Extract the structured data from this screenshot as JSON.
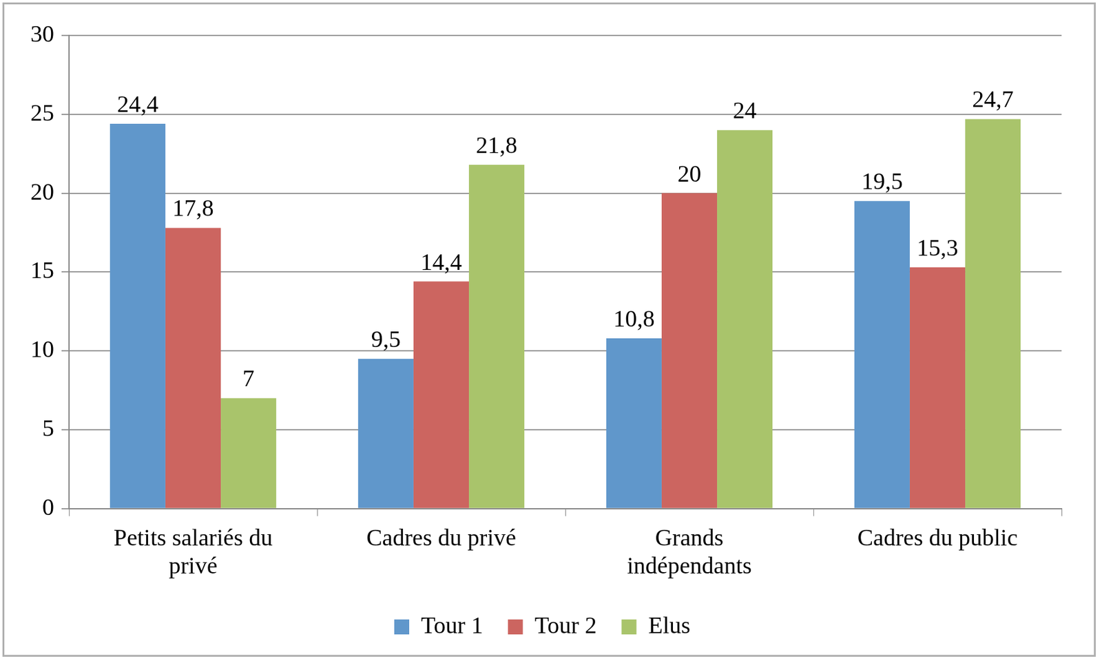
{
  "chart_data": {
    "type": "bar",
    "categories": [
      "Petits salariés du\nprivé",
      "Cadres du privé",
      "Grands\nindépendants",
      "Cadres du public"
    ],
    "series": [
      {
        "name": "Tour 1",
        "color": "#6097cb",
        "values": [
          24.4,
          9.5,
          10.8,
          19.5
        ],
        "value_labels": [
          "24,4",
          "9,5",
          "10,8",
          "19,5"
        ]
      },
      {
        "name": "Tour 2",
        "color": "#cc6560",
        "values": [
          17.8,
          14.4,
          20,
          15.3
        ],
        "value_labels": [
          "17,8",
          "14,4",
          "20",
          "15,3"
        ]
      },
      {
        "name": "Elus",
        "color": "#a9c46b",
        "values": [
          7,
          21.8,
          24,
          24.7
        ],
        "value_labels": [
          "7",
          "21,8",
          "24",
          "24,7"
        ]
      }
    ],
    "ylim": [
      0,
      30
    ],
    "yticks": [
      0,
      5,
      10,
      15,
      20,
      25,
      30
    ],
    "grid": true,
    "legend": "bottom",
    "data_labels": true
  }
}
